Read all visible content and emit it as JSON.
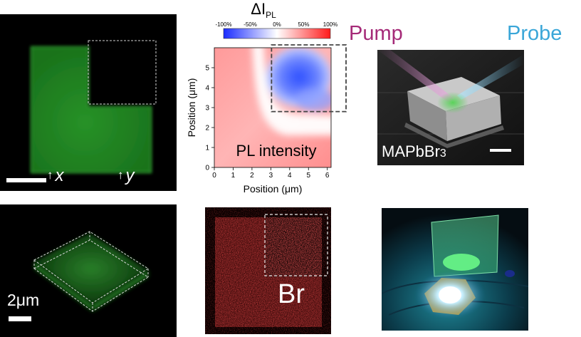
{
  "panel_a": {
    "x_label": "x",
    "y_label": "y",
    "arrow": "↑"
  },
  "panel_b": {
    "colorbar_title_main": "ΔI",
    "colorbar_title_sub": "PL",
    "colorbar_ticks": [
      "-100%",
      "-50%",
      "0%",
      "50%",
      "100%"
    ],
    "map_label": "PL intensity",
    "chart_data": {
      "type": "heatmap",
      "xlabel": "Position (μm)",
      "ylabel": "Position (μm)",
      "xlim": [
        0,
        6.2
      ],
      "ylim": [
        0,
        6.0
      ],
      "xticks": [
        0,
        1,
        2,
        3,
        4,
        5,
        6
      ],
      "yticks": [
        0,
        1,
        2,
        3,
        4,
        5
      ],
      "color_scale": {
        "min": -100,
        "max": 100,
        "unit": "%",
        "colors": [
          "#1a2cff",
          "#ffffff",
          "#ff1a1a"
        ]
      },
      "regions": [
        {
          "value": -100,
          "x": [
            3.0,
            6.2
          ],
          "y": [
            2.8,
            6.0
          ]
        },
        {
          "value": 30,
          "x": [
            0,
            3.0
          ],
          "y": [
            0,
            6.0
          ]
        },
        {
          "value": 30,
          "x": [
            3.0,
            6.2
          ],
          "y": [
            0,
            2.8
          ]
        }
      ],
      "dashed_box": {
        "x": [
          3.0,
          6.2
        ],
        "y": [
          2.8,
          6.0
        ]
      }
    }
  },
  "panel_c": {
    "pump_label": "Pump",
    "probe_label": "Probe",
    "sem_label": "MAPbBr",
    "sem_label_sub": "3"
  },
  "panel_d": {
    "scale_label": "2μm"
  },
  "panel_e": {
    "element_label": "Br"
  }
}
